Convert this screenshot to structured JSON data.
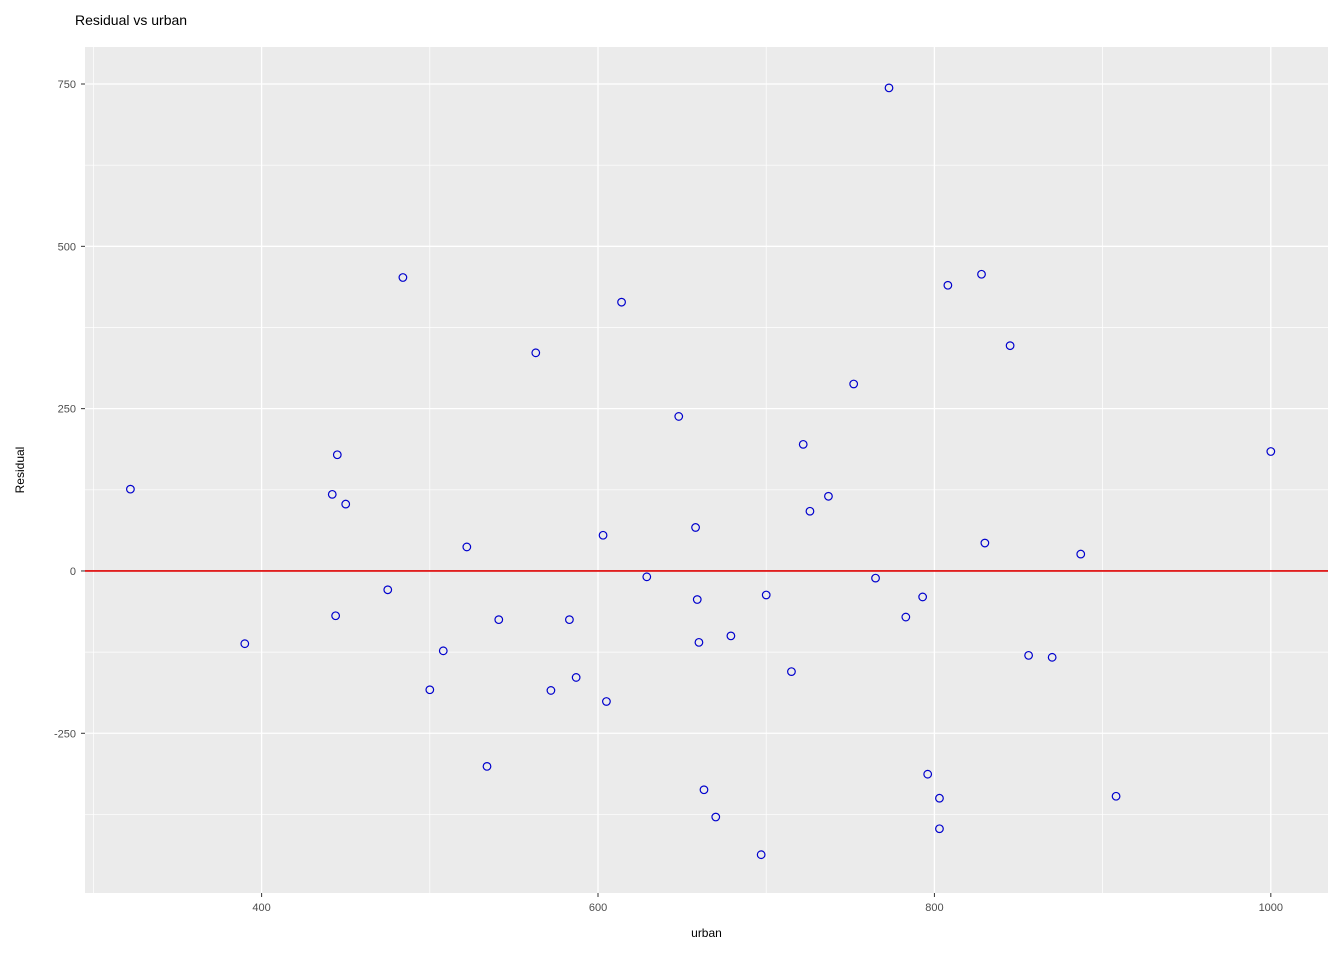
{
  "chart_data": {
    "type": "scatter",
    "title": "Residual vs urban",
    "xlabel": "urban",
    "ylabel": "Residual",
    "xlim": [
      295,
      1034
    ],
    "ylim": [
      -496,
      807
    ],
    "x_ticks": [
      400,
      600,
      800,
      1000
    ],
    "y_ticks": [
      -250,
      0,
      250,
      500,
      750
    ],
    "x_minor_ticks": [
      300,
      500,
      700,
      900
    ],
    "y_minor_ticks": [
      -375,
      -125,
      125,
      375,
      625
    ],
    "grid": true,
    "legend": "none",
    "panel_background": "#ebebeb",
    "grid_color": "#ffffff",
    "tick_label_color": "#4d4d4d",
    "tick_mark_color": "#333333",
    "point_color": "#0000cd",
    "reference_line": {
      "y": 0,
      "color": "#dd0000"
    },
    "points": [
      [
        322,
        126
      ],
      [
        390,
        -112
      ],
      [
        442,
        118
      ],
      [
        444,
        -69
      ],
      [
        445,
        179
      ],
      [
        450,
        103
      ],
      [
        475,
        -29
      ],
      [
        484,
        452
      ],
      [
        500,
        -183
      ],
      [
        508,
        -123
      ],
      [
        522,
        37
      ],
      [
        534,
        -301
      ],
      [
        541,
        -75
      ],
      [
        563,
        336
      ],
      [
        572,
        -184
      ],
      [
        583,
        -75
      ],
      [
        587,
        -164
      ],
      [
        603,
        55
      ],
      [
        605,
        -201
      ],
      [
        614,
        414
      ],
      [
        629,
        -9
      ],
      [
        648,
        238
      ],
      [
        658,
        67
      ],
      [
        659,
        -44
      ],
      [
        660,
        -110
      ],
      [
        663,
        -337
      ],
      [
        670,
        -379
      ],
      [
        679,
        -100
      ],
      [
        697,
        -437
      ],
      [
        700,
        -37
      ],
      [
        715,
        -155
      ],
      [
        722,
        195
      ],
      [
        726,
        92
      ],
      [
        737,
        115
      ],
      [
        752,
        288
      ],
      [
        765,
        -11
      ],
      [
        773,
        744
      ],
      [
        783,
        -71
      ],
      [
        793,
        -40
      ],
      [
        796,
        -313
      ],
      [
        803,
        -350
      ],
      [
        803,
        -397
      ],
      [
        808,
        440
      ],
      [
        828,
        457
      ],
      [
        830,
        43
      ],
      [
        845,
        347
      ],
      [
        856,
        -130
      ],
      [
        870,
        -133
      ],
      [
        887,
        26
      ],
      [
        908,
        -347
      ],
      [
        1000,
        184
      ]
    ]
  }
}
